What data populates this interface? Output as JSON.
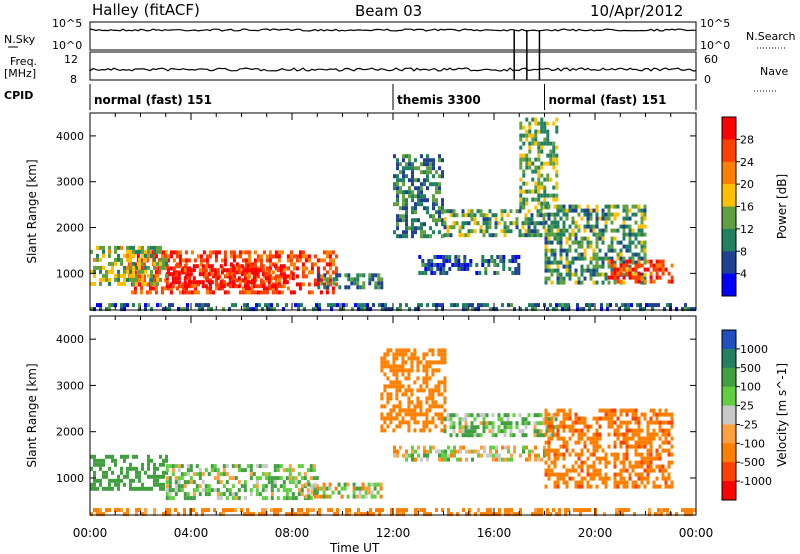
{
  "header": {
    "title": "Halley (fitACF)",
    "beam": "Beam 03",
    "date": "10/Apr/2012"
  },
  "strip": {
    "nsky_label": "N.Sky",
    "nsearch_label": "N.Search",
    "freq_label": "Freq.",
    "freq_unit": "[MHz]",
    "nave_label": "Nave",
    "cpid_label": "CPID",
    "nsky_ticks": [
      "10^5",
      "10^0"
    ],
    "freq_ticks": [
      "12",
      "8"
    ],
    "nave_ticks": [
      "60",
      "0"
    ],
    "colors": {
      "noise": "#000000"
    }
  },
  "cpid_segments": [
    {
      "label": "normal (fast) 151",
      "start_hour": 0
    },
    {
      "label": "themis 3300",
      "start_hour": 12
    },
    {
      "label": "normal (fast) 151",
      "start_hour": 18
    }
  ],
  "chart_data": [
    {
      "type": "heatmap",
      "name": "power",
      "ylabel": "Slant Range [km]",
      "xlabel": "Time UT",
      "xlim": [
        0,
        24
      ],
      "ylim": [
        200,
        4500
      ],
      "x_ticks": [
        "00:00",
        "04:00",
        "08:00",
        "12:00",
        "16:00",
        "20:00",
        "00:00"
      ],
      "y_ticks": [
        1000,
        2000,
        3000,
        4000
      ],
      "colorbar": {
        "label": "Power [dB]",
        "ticks": [
          "28",
          "24",
          "20",
          "16",
          "12",
          "8",
          "4"
        ],
        "colors": [
          "#ff0000",
          "#ff4000",
          "#ff8000",
          "#ffc000",
          "#60a040",
          "#208060",
          "#204090",
          "#0000ff"
        ]
      },
      "regions": [
        {
          "t": [
            1.5,
            9.8
          ],
          "r": [
            600,
            1500
          ],
          "level": 26
        },
        {
          "t": [
            3.0,
            8.0
          ],
          "r": [
            700,
            1200
          ],
          "level": 29
        },
        {
          "t": [
            9.0,
            11.5
          ],
          "r": [
            700,
            1000
          ],
          "level": 10
        },
        {
          "t": [
            0,
            3
          ],
          "r": [
            800,
            1600
          ],
          "level": 15
        },
        {
          "t": [
            12,
            14
          ],
          "r": [
            1800,
            3600
          ],
          "level": 10
        },
        {
          "t": [
            13,
            17
          ],
          "r": [
            1000,
            1400
          ],
          "level": 7
        },
        {
          "t": [
            14,
            18
          ],
          "r": [
            1800,
            2400
          ],
          "level": 12
        },
        {
          "t": [
            17,
            18.5
          ],
          "r": [
            2400,
            4400
          ],
          "level": 14
        },
        {
          "t": [
            18,
            22
          ],
          "r": [
            800,
            2500
          ],
          "level": 12
        },
        {
          "t": [
            20.5,
            23
          ],
          "r": [
            800,
            1300
          ],
          "level": 26
        },
        {
          "t": [
            0,
            24
          ],
          "r": [
            200,
            350
          ],
          "level": 8
        }
      ]
    },
    {
      "type": "heatmap",
      "name": "velocity",
      "ylabel": "Slant Range [km]",
      "xlabel": "Time UT",
      "xlim": [
        0,
        24
      ],
      "ylim": [
        200,
        4500
      ],
      "x_ticks": [
        "00:00",
        "04:00",
        "08:00",
        "12:00",
        "16:00",
        "20:00",
        "00:00"
      ],
      "y_ticks": [
        1000,
        2000,
        3000,
        4000
      ],
      "colorbar": {
        "label": "Velocity [m s^-1]",
        "ticks": [
          "1000",
          "500",
          "100",
          "25",
          "-25",
          "-100",
          "-500",
          "-1000"
        ],
        "colors": [
          "#2050c0",
          "#208060",
          "#40a040",
          "#60d040",
          "#c8c8c8",
          "#ffa040",
          "#ff8000",
          "#ff4000",
          "#ff0000"
        ]
      },
      "regions": [
        {
          "t": [
            0,
            3
          ],
          "r": [
            800,
            1500
          ],
          "v": 300
        },
        {
          "t": [
            3,
            9
          ],
          "r": [
            600,
            1300
          ],
          "v": 80
        },
        {
          "t": [
            8.5,
            11.5
          ],
          "r": [
            600,
            900
          ],
          "v": 0
        },
        {
          "t": [
            11.5,
            14
          ],
          "r": [
            2000,
            3800
          ],
          "v": -300
        },
        {
          "t": [
            12,
            18
          ],
          "r": [
            1400,
            1700
          ],
          "v": 0
        },
        {
          "t": [
            14,
            18.5
          ],
          "r": [
            1900,
            2400
          ],
          "v": 100
        },
        {
          "t": [
            18,
            23
          ],
          "r": [
            800,
            2500
          ],
          "v": -400
        },
        {
          "t": [
            0,
            24
          ],
          "r": [
            200,
            350
          ],
          "v": -200
        }
      ]
    }
  ]
}
